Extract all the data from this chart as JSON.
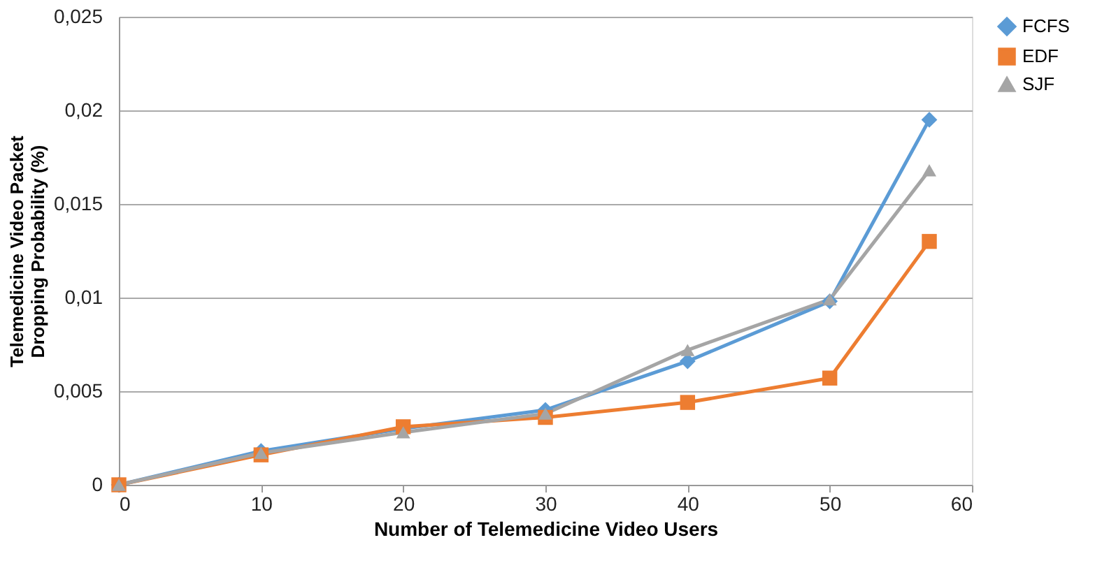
{
  "chart_data": {
    "type": "line",
    "xlabel": "Number of Telemedicine Video Users",
    "ylabel": "Telemedicine Video Packet Dropping Probability (%)",
    "x": [
      0,
      10,
      20,
      30,
      40,
      50,
      57
    ],
    "series": [
      {
        "name": "FCFS",
        "color": "#5b9bd5",
        "marker": "diamond",
        "values": [
          0,
          0.0018,
          0.003,
          0.004,
          0.0066,
          0.0098,
          0.0195
        ]
      },
      {
        "name": "EDF",
        "color": "#ed7d31",
        "marker": "square",
        "values": [
          0,
          0.0016,
          0.0031,
          0.0036,
          0.0044,
          0.0057,
          0.013
        ]
      },
      {
        "name": "SJF",
        "color": "#a5a5a5",
        "marker": "triangle",
        "values": [
          0,
          0.0017,
          0.0028,
          0.0038,
          0.0072,
          0.0099,
          0.0168
        ]
      }
    ],
    "xlim": [
      0,
      60
    ],
    "xticks": [
      0,
      10,
      20,
      30,
      40,
      50,
      60
    ],
    "ylim": [
      0,
      0.025
    ],
    "yticks": [
      0,
      {
        "value": 0.005,
        "label": "0,005"
      },
      {
        "value": 0.01,
        "label": "0,01"
      },
      {
        "value": 0.015,
        "label": "0,015"
      },
      {
        "value": 0.02,
        "label": "0,02"
      },
      {
        "value": 0.025,
        "label": "0,025"
      }
    ],
    "grid": "y",
    "legend": "right"
  }
}
